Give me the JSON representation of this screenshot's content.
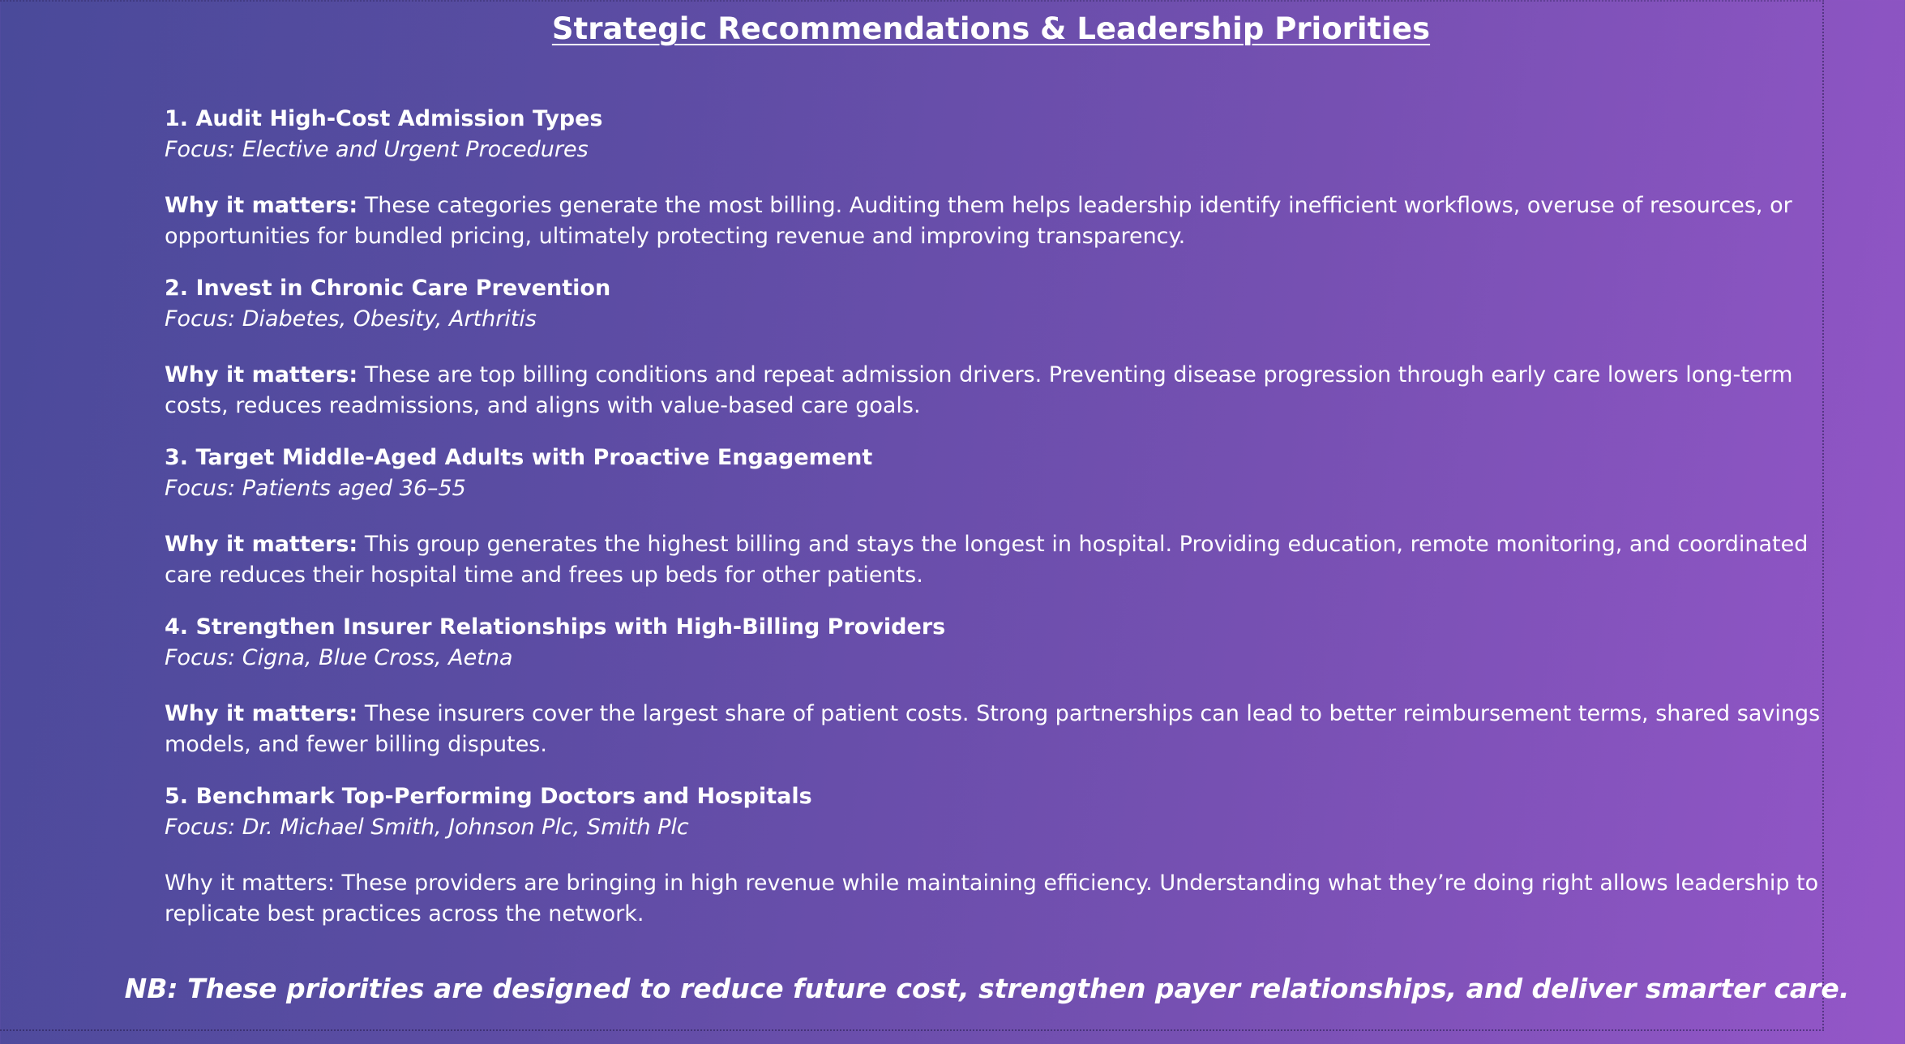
{
  "title": "Strategic Recommendations & Leadership Priorities",
  "recommendations": [
    {
      "heading": "1. Audit High-Cost Admission Types",
      "focus": "Focus: Elective and Urgent Procedures",
      "why_label": "Why it matters:",
      "why_text": " These categories generate the most billing. Auditing them helps leadership identify inefficient workflows, overuse of resources, or opportunities for bundled pricing, ultimately protecting revenue and improving transparency."
    },
    {
      "heading": "2. Invest in Chronic Care Prevention",
      "focus": "Focus: Diabetes, Obesity, Arthritis",
      "why_label": "Why it matters:",
      "why_text": " These are top billing conditions and repeat admission drivers. Preventing disease progression through early care lowers long-term costs, reduces readmissions, and aligns with value-based care goals."
    },
    {
      "heading": "3. Target Middle-Aged Adults with Proactive Engagement",
      "focus": "Focus: Patients aged 36–55",
      "why_label": "Why it matters:",
      "why_text": " This group generates the highest billing and stays the longest in hospital. Providing education, remote monitoring, and coordinated care reduces their hospital time and frees up beds for other patients."
    },
    {
      "heading": "4. Strengthen Insurer Relationships with High-Billing Providers",
      "focus": "Focus: Cigna, Blue Cross, Aetna",
      "why_label": "Why it matters:",
      "why_text": " These insurers cover the largest share of patient costs. Strong partnerships can lead to better reimbursement terms, shared savings models, and fewer billing disputes."
    },
    {
      "heading": "5. Benchmark Top-Performing Doctors and Hospitals",
      "focus": "Focus: Dr. Michael Smith, Johnson Plc, Smith Plc",
      "why_label": "",
      "why_text": "Why it matters: These providers are bringing in high revenue while maintaining efficiency. Understanding what they’re doing right allows leadership to replicate best practices across the network."
    }
  ],
  "footer_note": "NB: These priorities are designed to reduce future cost, strengthen payer relationships, and deliver smarter care."
}
